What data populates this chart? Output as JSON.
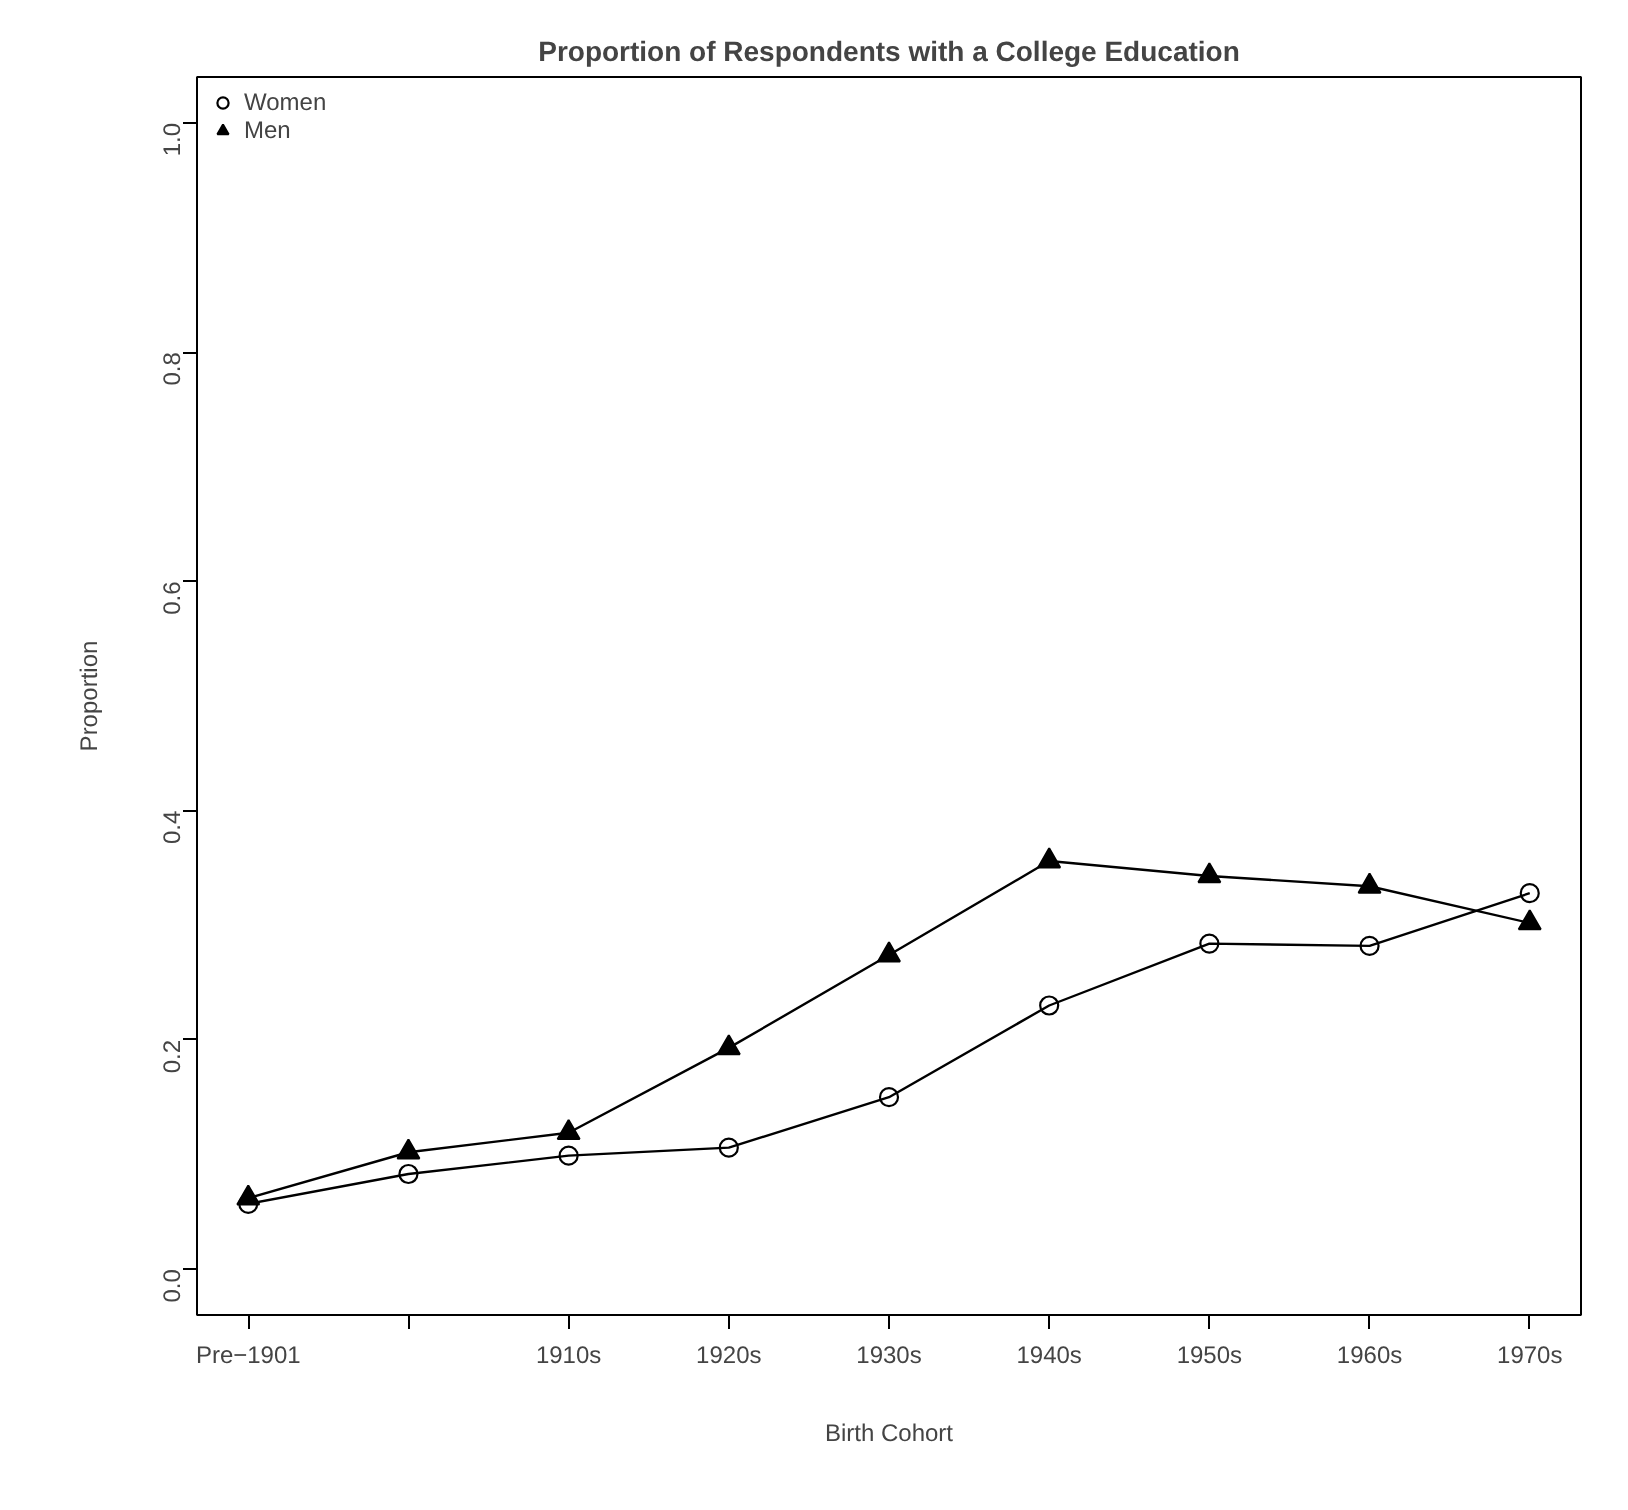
{
  "chart_data": {
    "type": "line",
    "title": "Proportion of Respondents with a College Education",
    "xlabel": "Birth Cohort",
    "ylabel": "Proportion",
    "categories": [
      "Pre−1901",
      null,
      "1910s",
      "1920s",
      "1930s",
      "1940s",
      "1950s",
      "1960s",
      "1970s"
    ],
    "series": [
      {
        "name": "Women",
        "color": "#000000",
        "marker": "circle",
        "values": [
          0.057,
          0.083,
          0.099,
          0.106,
          0.15,
          0.23,
          0.284,
          0.282,
          0.328
        ]
      },
      {
        "name": "Men",
        "color": "#000000",
        "marker": "triangle",
        "values": [
          0.062,
          0.102,
          0.119,
          0.193,
          0.274,
          0.356,
          0.343,
          0.334,
          0.302
        ]
      }
    ],
    "ylim": [
      -0.04,
      1.04
    ],
    "yticks": [
      {
        "value": 0,
        "label": "0.0"
      },
      {
        "value": 0.2,
        "label": "0.2"
      },
      {
        "value": 0.4,
        "label": "0.4"
      },
      {
        "value": 0.6,
        "label": "0.6"
      },
      {
        "value": 0.8,
        "label": "0.8"
      },
      {
        "value": 1,
        "label": "1.0"
      }
    ],
    "grid": false,
    "legend": "top left",
    "line_style": "solid"
  }
}
